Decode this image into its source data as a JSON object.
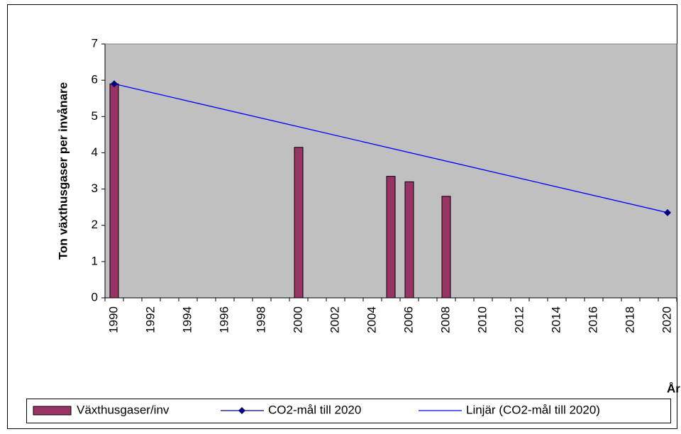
{
  "chart_data": {
    "type": "bar",
    "y_label": "Ton växthusgaser per invånare",
    "x_label": "År",
    "categories": [
      "1990",
      null,
      "1992",
      null,
      "1994",
      null,
      "1996",
      null,
      "1998",
      null,
      "2000",
      null,
      "2002",
      null,
      "2004",
      null,
      "2006",
      null,
      "2008",
      null,
      "2010",
      null,
      "2012",
      null,
      "2014",
      null,
      "2016",
      null,
      "2018",
      null,
      "2020"
    ],
    "series": [
      {
        "name": "Växthusgaser/inv",
        "type": "bar",
        "color": "#993366",
        "values": [
          5.9,
          null,
          null,
          null,
          null,
          null,
          null,
          null,
          null,
          null,
          4.15,
          null,
          null,
          null,
          null,
          3.35,
          3.2,
          null,
          2.8,
          null,
          null,
          null,
          null,
          null,
          null,
          null,
          null,
          null,
          null,
          null,
          null
        ]
      },
      {
        "name": "CO2-mål till 2020",
        "type": "marker",
        "color": "#000080",
        "values": [
          5.9,
          null,
          null,
          null,
          null,
          null,
          null,
          null,
          null,
          null,
          null,
          null,
          null,
          null,
          null,
          null,
          null,
          null,
          null,
          null,
          null,
          null,
          null,
          null,
          null,
          null,
          null,
          null,
          null,
          null,
          2.35
        ]
      },
      {
        "name": "Linjär (CO2-mål till 2020)",
        "type": "trendline",
        "color": "#0000ff",
        "trendline_of": 1
      }
    ],
    "ylim": [
      0,
      7
    ],
    "yticks": [
      0,
      1,
      2,
      3,
      4,
      5,
      6,
      7
    ],
    "plot_background": "#c0c0c0",
    "legend": "bottom"
  }
}
